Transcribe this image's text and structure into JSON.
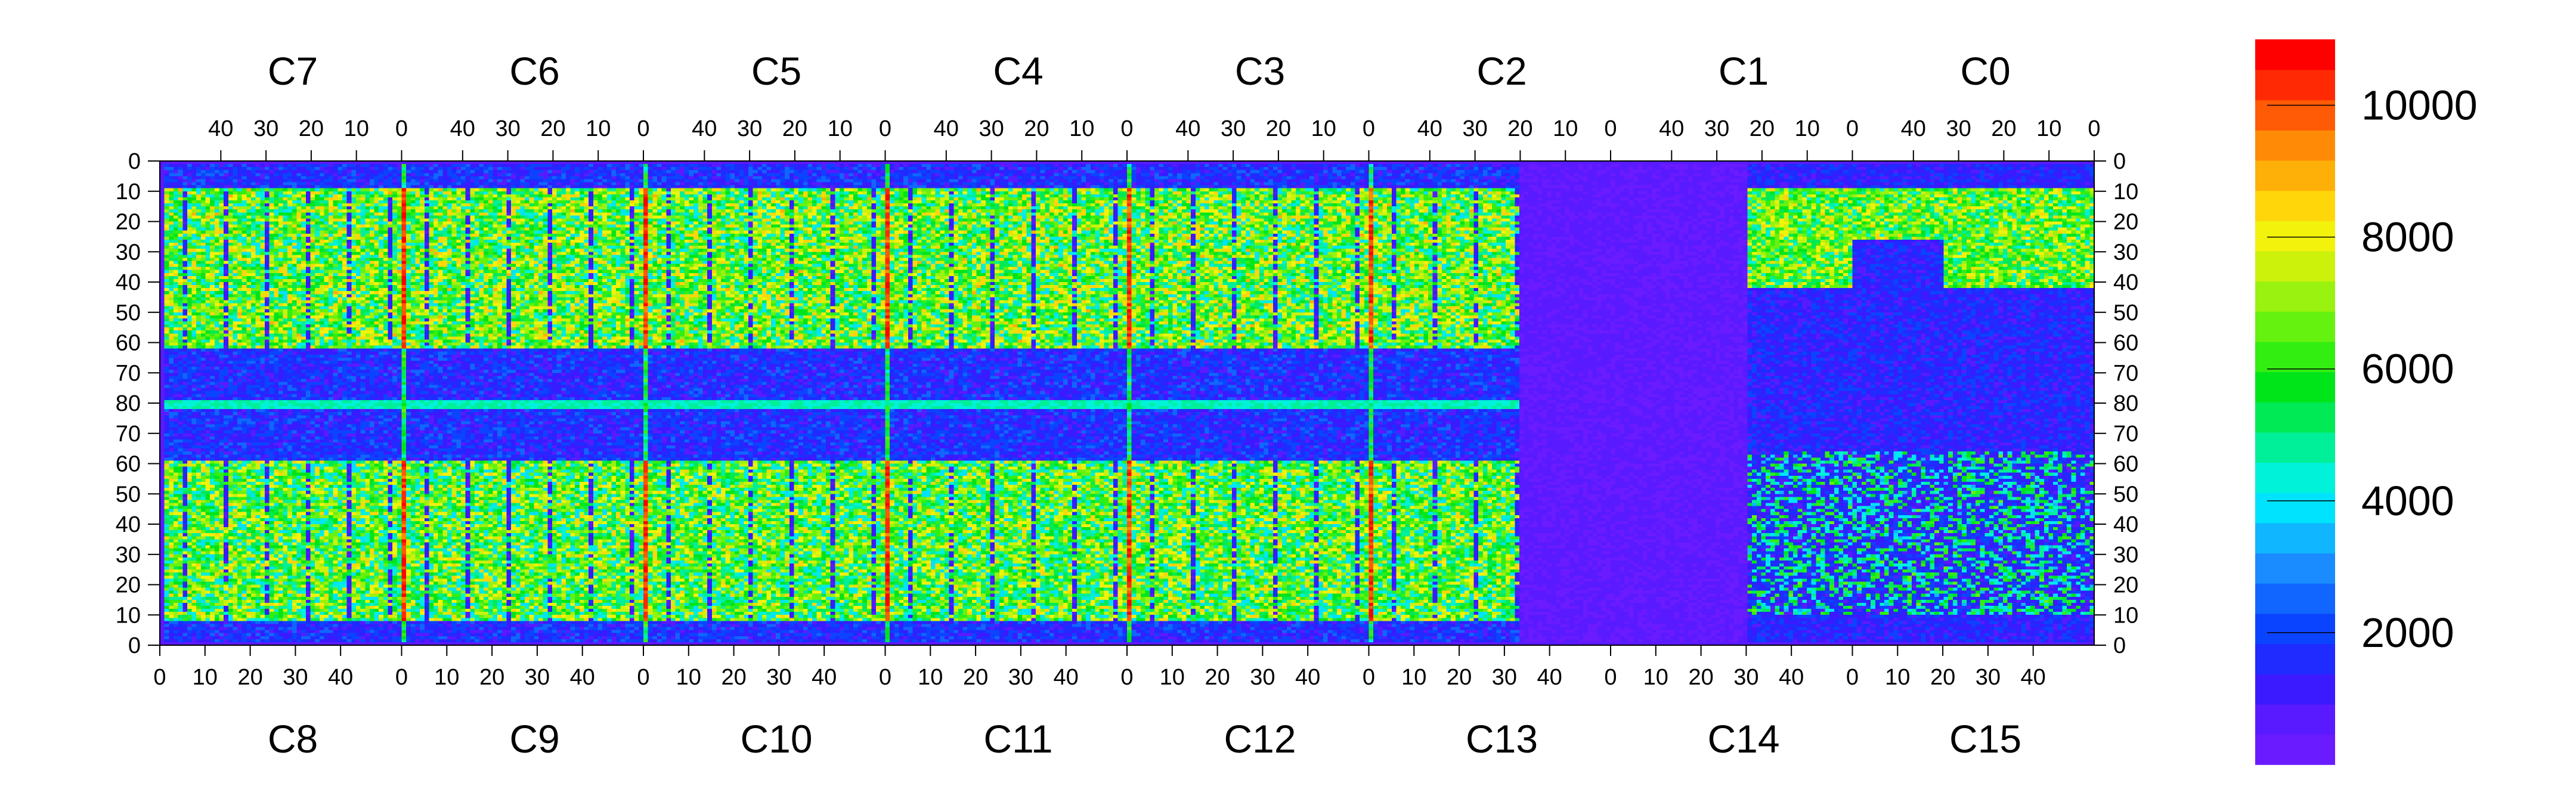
{
  "chart_data": {
    "type": "heatmap",
    "title": "",
    "top_chips": [
      "C7",
      "C6",
      "C5",
      "C4",
      "C3",
      "C2",
      "C1",
      "C0"
    ],
    "bottom_chips": [
      "C8",
      "C9",
      "C10",
      "C11",
      "C12",
      "C13",
      "C14",
      "C15"
    ],
    "top_axis_ticks": [
      "40",
      "30",
      "20",
      "10",
      "0"
    ],
    "bottom_axis_ticks": [
      "0",
      "10",
      "20",
      "30",
      "40"
    ],
    "left_axis_ticks": [
      "0",
      "10",
      "20",
      "30",
      "40",
      "50",
      "60",
      "70",
      "80",
      "70",
      "60",
      "50",
      "40",
      "30",
      "20",
      "10",
      "0"
    ],
    "right_axis_ticks": [
      "0",
      "10",
      "20",
      "30",
      "40",
      "50",
      "60",
      "70",
      "80",
      "70",
      "60",
      "50",
      "40",
      "30",
      "20",
      "10",
      "0"
    ],
    "colorbar": {
      "range": [
        0,
        11000
      ],
      "tick_values": [
        2000,
        4000,
        6000,
        8000,
        10000
      ],
      "tick_labels": [
        "2000",
        "4000",
        "6000",
        "8000",
        "10000"
      ],
      "colors": [
        "#6a1bff",
        "#5a1aff",
        "#3b1aff",
        "#1f2bff",
        "#0b44ff",
        "#1066ff",
        "#1a8cff",
        "#10b6ff",
        "#00e3ff",
        "#00f2d8",
        "#00ef99",
        "#00ea55",
        "#00e51a",
        "#33ee11",
        "#66f20f",
        "#99f20f",
        "#ccf20c",
        "#f2f20c",
        "#ffd60a",
        "#ffb008",
        "#ff8a06",
        "#ff5a05",
        "#ff2a04",
        "#ff0000"
      ]
    },
    "regions": {
      "background_level": 9800,
      "top_half_level": 7000,
      "bottom_half_level": 6800,
      "low_area_level": 700,
      "hot_column_level": 10500,
      "row80_level": 4200,
      "dead_chip_level": 300
    }
  }
}
